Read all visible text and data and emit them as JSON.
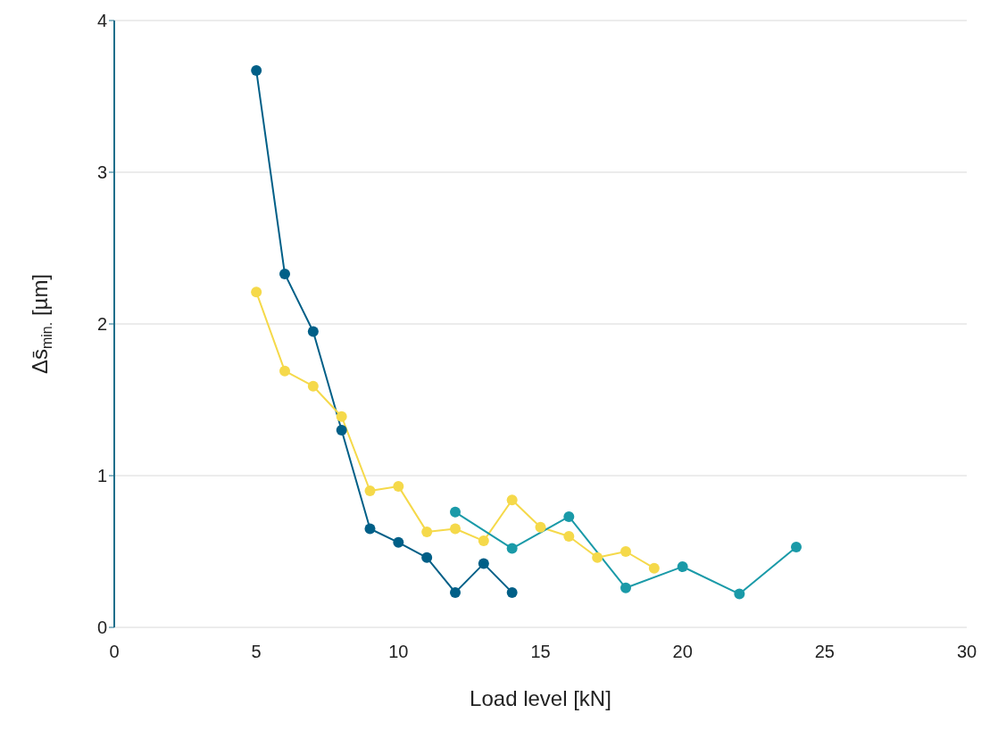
{
  "chart_data": {
    "type": "line",
    "xlabel": "Load level [kN]",
    "ylabel": "Δs̄$_{min.}$ [µm]",
    "xlim": [
      0,
      30
    ],
    "xticks": [
      0,
      5,
      10,
      15,
      20,
      25,
      30
    ],
    "ylim": [
      0,
      4
    ],
    "yticks": [
      0,
      1,
      2,
      3,
      4
    ],
    "grid": "y",
    "marker": "circle",
    "line_style": "solid",
    "series": [
      {
        "color": "#005f87",
        "x": [
          5,
          6,
          7,
          8,
          9,
          10,
          11,
          12,
          13,
          14
        ],
        "values": [
          3.67,
          2.33,
          1.95,
          1.3,
          0.65,
          0.56,
          0.46,
          0.23,
          0.42,
          0.23
        ]
      },
      {
        "color": "#f5d94a",
        "x": [
          5,
          6,
          7,
          8,
          9,
          10,
          11,
          12,
          13,
          14,
          15,
          16,
          17,
          18,
          19
        ],
        "values": [
          2.21,
          1.69,
          1.59,
          1.39,
          0.9,
          0.93,
          0.63,
          0.65,
          0.57,
          0.84,
          0.66,
          0.6,
          0.46,
          0.5,
          0.39
        ]
      },
      {
        "color": "#1a9aa8",
        "x": [
          12,
          14,
          16,
          18,
          20,
          22,
          24
        ],
        "values": [
          0.76,
          0.52,
          0.73,
          0.26,
          0.4,
          0.22,
          0.53
        ]
      }
    ]
  }
}
